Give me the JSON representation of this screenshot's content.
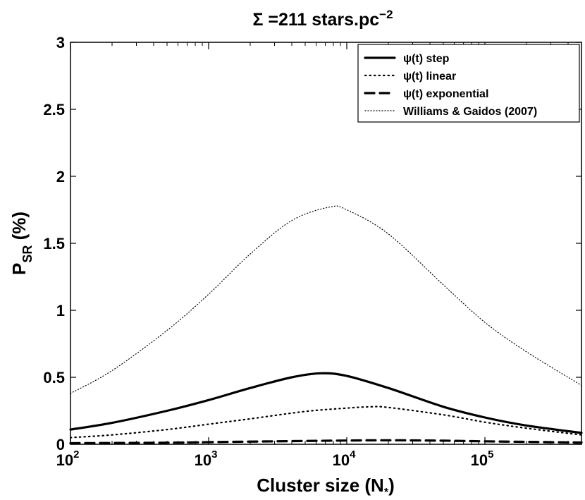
{
  "chart_data": {
    "type": "line",
    "title": {
      "prefix": "Σ =211 stars.pc",
      "superscript": "−2"
    },
    "xlabel": {
      "prefix": "Cluster size (N",
      "subscript": "*",
      "suffix": ")"
    },
    "ylabel": {
      "base": "P",
      "subscript": "SR",
      "suffix": " (%)"
    },
    "xscale": "log",
    "xlim": [
      100,
      500000
    ],
    "ylim": [
      0,
      3
    ],
    "grid": false,
    "legend_position": "top-right",
    "x_ticks": [
      {
        "value": 100,
        "base": "10",
        "exp": "2"
      },
      {
        "value": 1000,
        "base": "10",
        "exp": "3"
      },
      {
        "value": 10000,
        "base": "10",
        "exp": "4"
      },
      {
        "value": 100000,
        "base": "10",
        "exp": "5"
      }
    ],
    "y_ticks": [
      {
        "value": 0,
        "label": "0"
      },
      {
        "value": 0.5,
        "label": "0.5"
      },
      {
        "value": 1,
        "label": "1"
      },
      {
        "value": 1.5,
        "label": "1.5"
      },
      {
        "value": 2,
        "label": "2"
      },
      {
        "value": 2.5,
        "label": "2.5"
      },
      {
        "value": 3,
        "label": "3"
      }
    ],
    "series": [
      {
        "name": "ψ(t) step",
        "style": "solid",
        "color": "#000000",
        "x": [
          100,
          200,
          500,
          1000,
          2000,
          4000,
          6500,
          10000,
          20000,
          50000,
          100000,
          200000,
          500000
        ],
        "y": [
          0.11,
          0.16,
          0.25,
          0.33,
          0.42,
          0.5,
          0.53,
          0.51,
          0.42,
          0.28,
          0.2,
          0.14,
          0.085
        ]
      },
      {
        "name": "ψ(t) linear",
        "style": "dotted",
        "color": "#000000",
        "x": [
          100,
          200,
          500,
          1000,
          2000,
          5000,
          10000,
          15000,
          20000,
          50000,
          100000,
          200000,
          500000
        ],
        "y": [
          0.05,
          0.07,
          0.11,
          0.15,
          0.19,
          0.245,
          0.27,
          0.28,
          0.275,
          0.22,
          0.165,
          0.12,
          0.07
        ]
      },
      {
        "name": "ψ(t) exponential",
        "style": "dashed",
        "color": "#000000",
        "x": [
          100,
          500,
          1000,
          3000,
          10000,
          20000,
          50000,
          100000,
          200000,
          500000
        ],
        "y": [
          0.008,
          0.012,
          0.016,
          0.022,
          0.028,
          0.03,
          0.027,
          0.022,
          0.018,
          0.013
        ]
      },
      {
        "name": "Williams & Gaidos (2007)",
        "style": "fine-dotted",
        "color": "#000000",
        "x": [
          100,
          200,
          500,
          1000,
          2000,
          4000,
          7500,
          10000,
          20000,
          50000,
          100000,
          200000,
          500000
        ],
        "y": [
          0.38,
          0.55,
          0.85,
          1.12,
          1.42,
          1.67,
          1.77,
          1.75,
          1.57,
          1.19,
          0.91,
          0.69,
          0.44
        ]
      }
    ]
  }
}
